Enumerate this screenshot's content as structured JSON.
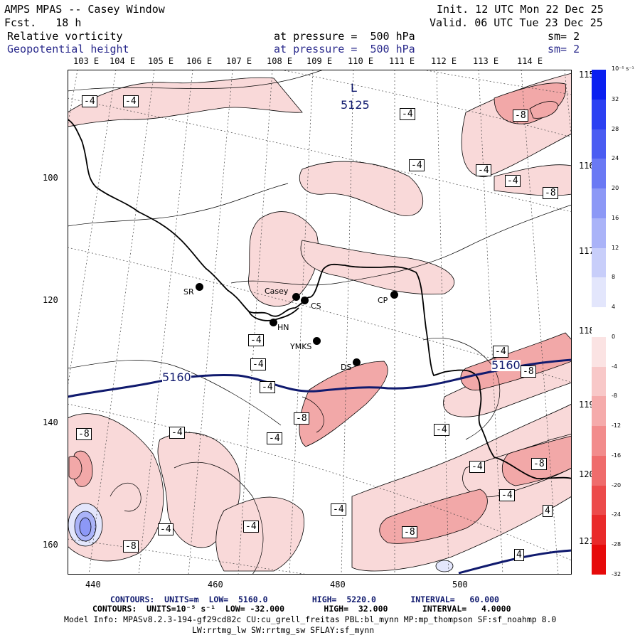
{
  "header": {
    "title": "AMPS MPAS -- Casey Window",
    "forecast": "Fcst.   18 h",
    "init": "Init. 12 UTC Mon 22 Dec 25",
    "valid": "Valid. 06 UTC Tue 23 Dec 25",
    "field1_name": "Relative vorticity",
    "field1_level": "at pressure =  500 hPa",
    "field1_sm": "sm= 2",
    "field2_name": "Geopotential height",
    "field2_level": "at pressure =  500 hPa",
    "field2_sm": "sm= 2"
  },
  "top_longitudes": [
    "103 E",
    "104 E",
    "105 E",
    "106 E",
    "107 E",
    "108 E",
    "109 E",
    "110 E",
    "111 E",
    "112 E",
    "113 E",
    "114 E"
  ],
  "right_longitudes": [
    "115 E",
    "116 E",
    "117 E",
    "118 E",
    "119 E",
    "120 E",
    "121 E"
  ],
  "x_ticks": [
    "440",
    "460",
    "480",
    "500"
  ],
  "y_ticks": [
    "100",
    "120",
    "140",
    "160"
  ],
  "stations": [
    {
      "name": "SR"
    },
    {
      "name": "Casey"
    },
    {
      "name": "CS"
    },
    {
      "name": "HN"
    },
    {
      "name": "YMKS"
    },
    {
      "name": "CP"
    },
    {
      "name": "DS"
    }
  ],
  "contour_labels": {
    "height_low": "L",
    "height_low_value": "5125",
    "height_5160": "5160",
    "vort": [
      "-4",
      "-8",
      "4"
    ]
  },
  "colorbar": {
    "unit": "10⁻⁵ s⁻¹",
    "ticks": [
      "32",
      "28",
      "24",
      "20",
      "16",
      "12",
      "8",
      "4",
      "0",
      "-4",
      "-8",
      "-12",
      "-16",
      "-20",
      "-24",
      "-28",
      "-32"
    ],
    "colors": [
      "#0a1ff0",
      "#2b40f2",
      "#4a5cf2",
      "#6a79f4",
      "#8c98f6",
      "#aab3f8",
      "#c8cefa",
      "#e3e6fc",
      "#ffffff",
      "#fbe3e3",
      "#f8c8c8",
      "#f5abab",
      "#f28c8c",
      "#ef6c6c",
      "#ec4b4b",
      "#e92a2a",
      "#e60a0a"
    ]
  },
  "footer": {
    "line1_label": "CONTOURS:  UNITS=m  LOW=  5160.0         HIGH=  5220.0       INTERVAL=   60.000",
    "line2_label": "CONTOURS:  UNITS=10⁻⁵ s⁻¹  LOW= -32.000        HIGH=  32.000       INTERVAL=   4.0000",
    "line3": "Model Info: MPASv8.2.3-194-gf29cd82c CU:cu_grell_freitas PBL:bl_mynn MP:mp_thompson SF:sf_noahmp 8.0",
    "line4": "LW:rrtmg_lw SW:rrtmg_sw SFLAY:sf_mynn"
  },
  "colors": {
    "height_contour": "#101a6e",
    "vort_contour": "#000000",
    "positive_shading": "#f9d9d9",
    "negative_shading": "#f8c8c8"
  }
}
